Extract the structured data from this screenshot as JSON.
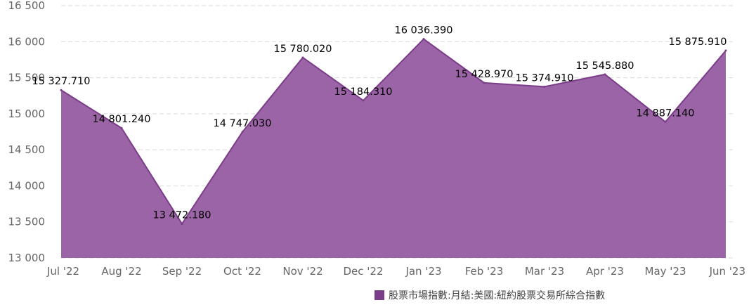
{
  "chart_data": {
    "type": "area",
    "categories": [
      "Jul '22",
      "Aug '22",
      "Sep '22",
      "Oct '22",
      "Nov '22",
      "Dec '22",
      "Jan '23",
      "Feb '23",
      "Mar '23",
      "Apr '23",
      "May '23",
      "Jun '23"
    ],
    "series": [
      {
        "name": "股票市場指數:月結:美國:紐約股票交易所綜合指數",
        "values": [
          15327.71,
          14801.24,
          13472.18,
          14747.03,
          15780.02,
          15184.31,
          16036.39,
          15428.97,
          15374.91,
          15545.88,
          14887.14,
          15875.91
        ],
        "labels": [
          "15 327.710",
          "14 801.240",
          "13 472.180",
          "14 747.030",
          "15 780.020",
          "15 184.310",
          "16 036.390",
          "15 428.970",
          "15 374.910",
          "15 545.880",
          "14 887.140",
          "15 875.910"
        ],
        "color": "#9b64a6",
        "line_color": "#7b3d8a"
      }
    ],
    "y_ticks": [
      "13 000",
      "13 500",
      "14 000",
      "14 500",
      "15 000",
      "15 500",
      "16 000",
      "16 500"
    ],
    "ylim": [
      13000,
      16500
    ],
    "grid": true,
    "legend_position": "bottom-center",
    "legend_swatch_color": "#7b3d8a"
  }
}
